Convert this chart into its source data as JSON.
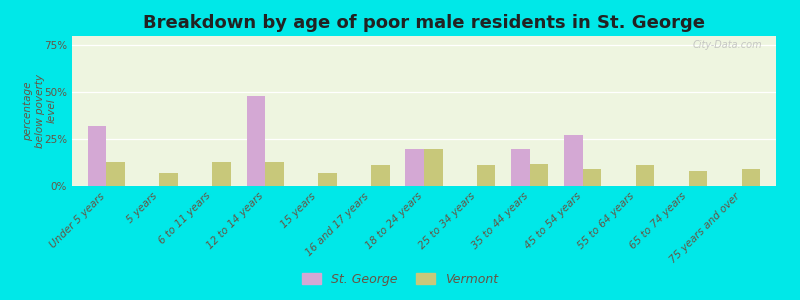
{
  "title": "Breakdown by age of poor male residents in St. George",
  "ylabel": "percentage\nbelow poverty\nlevel",
  "categories": [
    "Under 5 years",
    "5 years",
    "6 to 11 years",
    "12 to 14 years",
    "15 years",
    "16 and 17 years",
    "18 to 24 years",
    "25 to 34 years",
    "35 to 44 years",
    "45 to 54 years",
    "55 to 64 years",
    "65 to 74 years",
    "75 years and over"
  ],
  "st_george": [
    32,
    0,
    0,
    48,
    0,
    0,
    20,
    0,
    20,
    27,
    0,
    0,
    0
  ],
  "vermont": [
    13,
    7,
    13,
    13,
    7,
    11,
    20,
    11,
    12,
    9,
    11,
    8,
    9
  ],
  "st_george_color": "#d4a8d4",
  "vermont_color": "#c8c87a",
  "bg_color": "#00e8e8",
  "plot_bg_color": "#eef5e0",
  "ylim": [
    0,
    80
  ],
  "yticks": [
    0,
    25,
    50,
    75
  ],
  "ytick_labels": [
    "0%",
    "25%",
    "50%",
    "75%"
  ],
  "bar_width": 0.35,
  "title_fontsize": 13,
  "tick_fontsize": 7.5,
  "ylabel_fontsize": 7.5,
  "legend_fontsize": 9,
  "watermark": "City-Data.com"
}
